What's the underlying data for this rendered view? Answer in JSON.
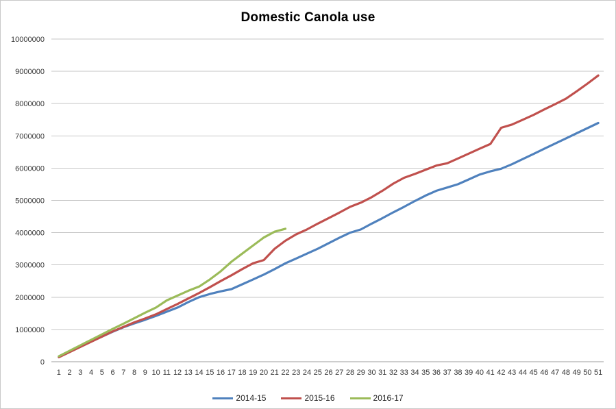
{
  "title": "Domestic Canola use",
  "colors": {
    "series_blue": "#4F81BD",
    "series_red": "#C0504D",
    "series_green": "#9BBB59",
    "gridline": "#C6C6C6",
    "axis_line": "#9C9C9C",
    "tick_text": "#333333"
  },
  "chart_data": {
    "type": "line",
    "title": "Domestic Canola use",
    "xlabel": "",
    "ylabel": "",
    "grid": "horizontal",
    "legend_position": "bottom",
    "ylim": [
      0,
      10000000
    ],
    "y_tick_step": 1000000,
    "y_tick_labels": [
      "0",
      "1000000",
      "2000000",
      "3000000",
      "4000000",
      "5000000",
      "6000000",
      "7000000",
      "8000000",
      "9000000",
      "10000000"
    ],
    "categories": [
      "1",
      "2",
      "3",
      "4",
      "5",
      "6",
      "7",
      "8",
      "9",
      "10",
      "11",
      "12",
      "13",
      "14",
      "15",
      "16",
      "17",
      "18",
      "19",
      "20",
      "21",
      "22",
      "23",
      "24",
      "25",
      "26",
      "27",
      "28",
      "29",
      "30",
      "31",
      "32",
      "33",
      "34",
      "35",
      "36",
      "37",
      "38",
      "39",
      "40",
      "41",
      "42",
      "43",
      "44",
      "45",
      "46",
      "47",
      "48",
      "49",
      "50",
      "51"
    ],
    "series": [
      {
        "name": "2014-15",
        "color": "#4F81BD",
        "values": [
          150000,
          310000,
          470000,
          630000,
          780000,
          930000,
          1070000,
          1190000,
          1300000,
          1420000,
          1550000,
          1680000,
          1850000,
          2000000,
          2100000,
          2180000,
          2250000,
          2400000,
          2550000,
          2700000,
          2870000,
          3050000,
          3200000,
          3350000,
          3500000,
          3670000,
          3840000,
          4000000,
          4100000,
          4280000,
          4450000,
          4630000,
          4800000,
          4980000,
          5150000,
          5300000,
          5400000,
          5500000,
          5650000,
          5800000,
          5900000,
          5980000,
          6120000,
          6280000,
          6440000,
          6600000,
          6760000,
          6920000,
          7080000,
          7240000,
          7400000
        ]
      },
      {
        "name": "2015-16",
        "color": "#C0504D",
        "values": [
          140000,
          300000,
          460000,
          620000,
          780000,
          940000,
          1080000,
          1220000,
          1340000,
          1470000,
          1630000,
          1790000,
          1960000,
          2130000,
          2310000,
          2500000,
          2680000,
          2870000,
          3050000,
          3150000,
          3500000,
          3750000,
          3950000,
          4100000,
          4280000,
          4450000,
          4620000,
          4800000,
          4930000,
          5100000,
          5300000,
          5520000,
          5700000,
          5820000,
          5950000,
          6080000,
          6150000,
          6300000,
          6450000,
          6600000,
          6750000,
          7250000,
          7350000,
          7500000,
          7650000,
          7820000,
          7980000,
          8150000,
          8380000,
          8620000,
          8870000
        ]
      },
      {
        "name": "2016-17",
        "color": "#9BBB59",
        "values": [
          170000,
          340000,
          510000,
          680000,
          850000,
          1020000,
          1180000,
          1350000,
          1520000,
          1680000,
          1900000,
          2050000,
          2200000,
          2330000,
          2550000,
          2800000,
          3100000,
          3350000,
          3600000,
          3850000,
          4030000,
          4120000
        ]
      }
    ]
  }
}
